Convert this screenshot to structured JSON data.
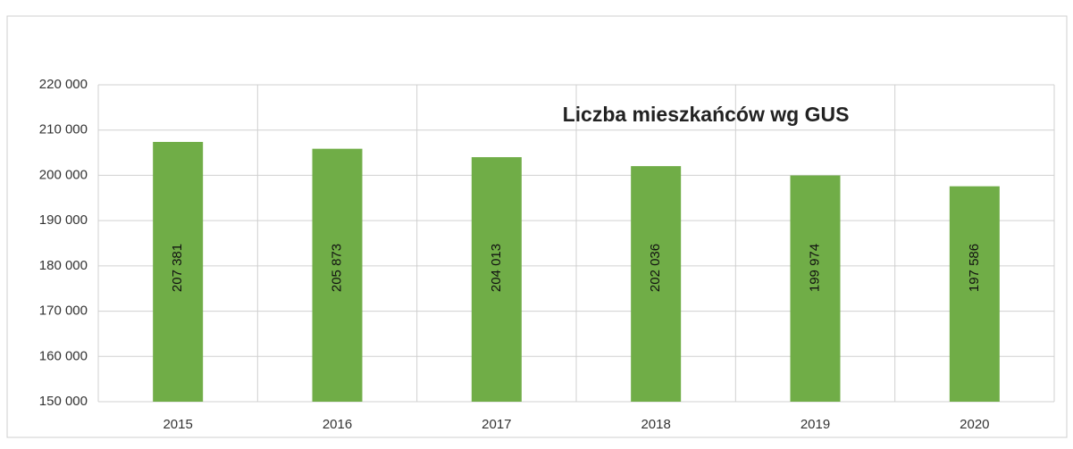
{
  "chart_data": {
    "type": "bar",
    "title": "Liczba mieszkańców wg GUS",
    "categories": [
      "2015",
      "2016",
      "2017",
      "2018",
      "2019",
      "2020"
    ],
    "values": [
      207381,
      205873,
      204013,
      202036,
      199974,
      197586
    ],
    "value_labels": [
      "207 381",
      "205 873",
      "204 013",
      "202 036",
      "199 974",
      "197 586"
    ],
    "color": "#70ad47",
    "ylim": [
      150000,
      220000
    ],
    "yticks": [
      {
        "value": 150000,
        "label": "150 000"
      },
      {
        "value": 160000,
        "label": "160 000"
      },
      {
        "value": 170000,
        "label": "170 000"
      },
      {
        "value": 180000,
        "label": "180 000"
      },
      {
        "value": 190000,
        "label": "190 000"
      },
      {
        "value": 200000,
        "label": "200 000"
      },
      {
        "value": 210000,
        "label": "210 000"
      },
      {
        "value": 220000,
        "label": "220 000"
      }
    ],
    "grid": true
  }
}
